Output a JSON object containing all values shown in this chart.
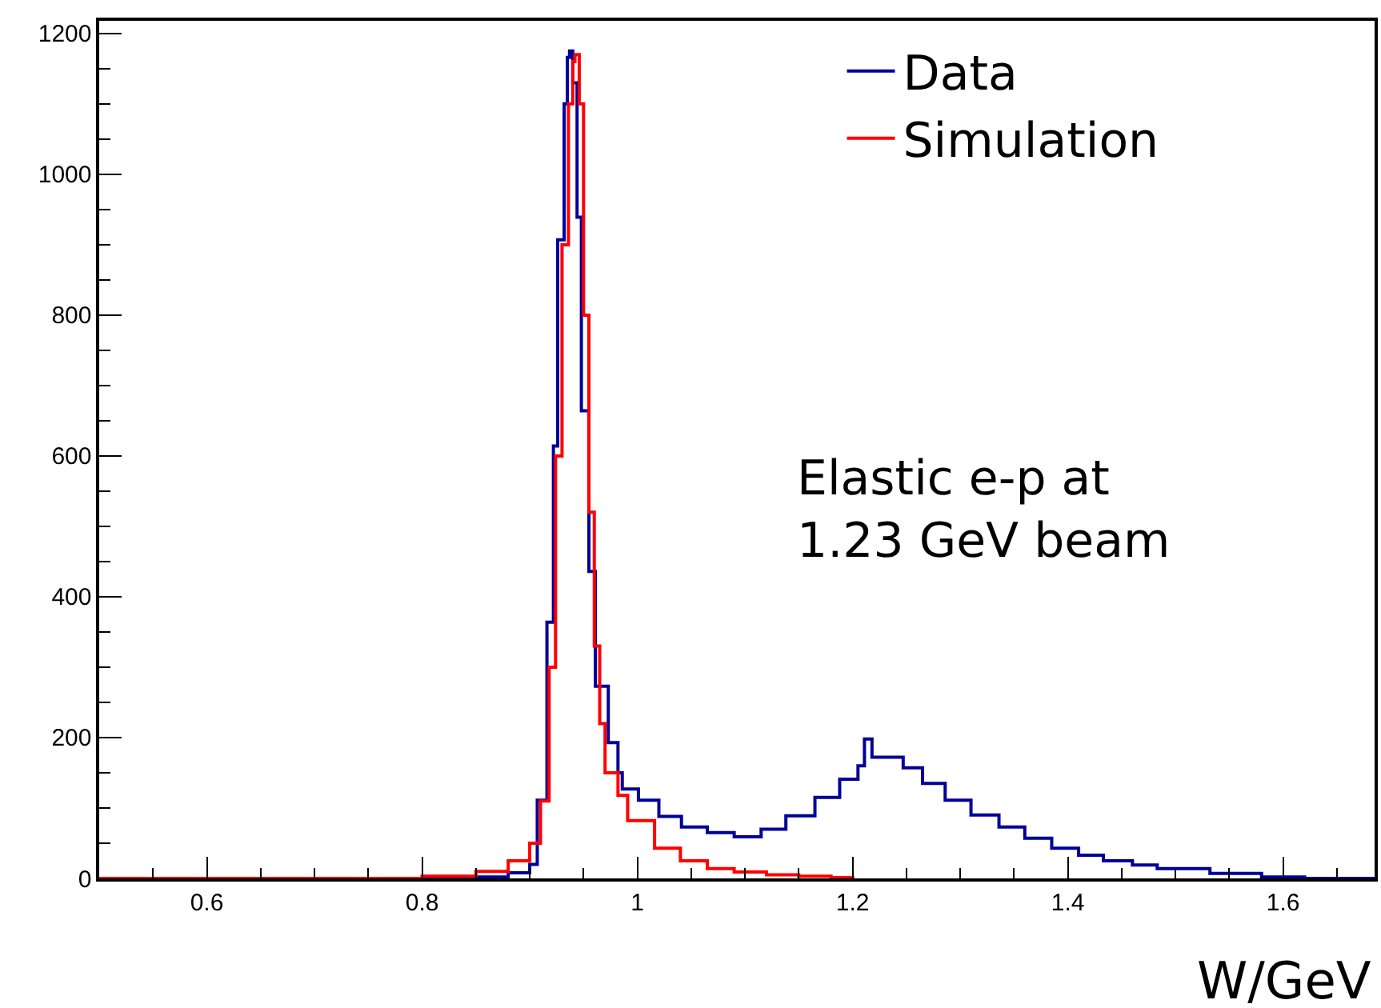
{
  "chart_data": {
    "type": "step",
    "xlabel": "W/GeV",
    "xlim": [
      0.5,
      1.685
    ],
    "xticks": [
      0.6,
      0.8,
      1,
      1.2,
      1.4,
      1.6
    ],
    "ylim": [
      0,
      1218
    ],
    "yticks": [
      0,
      200,
      400,
      600,
      800,
      1000,
      1200
    ],
    "legend": "top right",
    "annotations": [
      "Elastic e-p at\n1.23 GeV beam"
    ],
    "series": [
      {
        "name": "Data",
        "color": "#000099",
        "x": [
          0.5,
          0.8,
          0.85,
          0.88,
          0.9,
          0.907,
          0.916,
          0.922,
          0.926,
          0.932,
          0.935,
          0.937,
          0.94,
          0.944,
          0.948,
          0.955,
          0.961,
          0.973,
          0.982,
          0.986,
          1.001,
          1.02,
          1.041,
          1.065,
          1.09,
          1.115,
          1.138,
          1.165,
          1.188,
          1.205,
          1.211,
          1.218,
          1.247,
          1.265,
          1.286,
          1.31,
          1.336,
          1.36,
          1.385,
          1.41,
          1.433,
          1.46,
          1.483,
          1.532,
          1.58,
          1.62,
          1.685
        ],
        "values": [
          0,
          0,
          2,
          8,
          20,
          111,
          364,
          614,
          907,
          1100,
          1166,
          1175,
          1130,
          939,
          664,
          436,
          273,
          193,
          150,
          127,
          111,
          88,
          73,
          65,
          59,
          70,
          89,
          115,
          141,
          160,
          198,
          172,
          157,
          135,
          111,
          90,
          73,
          57,
          43,
          33,
          25,
          19,
          14,
          7,
          2,
          0,
          0
        ]
      },
      {
        "name": "Simulation",
        "color": "#ff0000",
        "x": [
          0.5,
          0.78,
          0.8,
          0.85,
          0.88,
          0.9,
          0.91,
          0.918,
          0.924,
          0.93,
          0.936,
          0.94,
          0.942,
          0.946,
          0.95,
          0.955,
          0.96,
          0.965,
          0.97,
          0.982,
          0.991,
          1.016,
          1.04,
          1.065,
          1.09,
          1.12,
          1.15,
          1.18,
          1.2
        ],
        "values": [
          0,
          0,
          3,
          10,
          25,
          50,
          110,
          300,
          600,
          900,
          1100,
          1160,
          1170,
          1100,
          800,
          520,
          330,
          220,
          150,
          118,
          82,
          43,
          25,
          14,
          9,
          5,
          3,
          1,
          0
        ]
      }
    ]
  }
}
